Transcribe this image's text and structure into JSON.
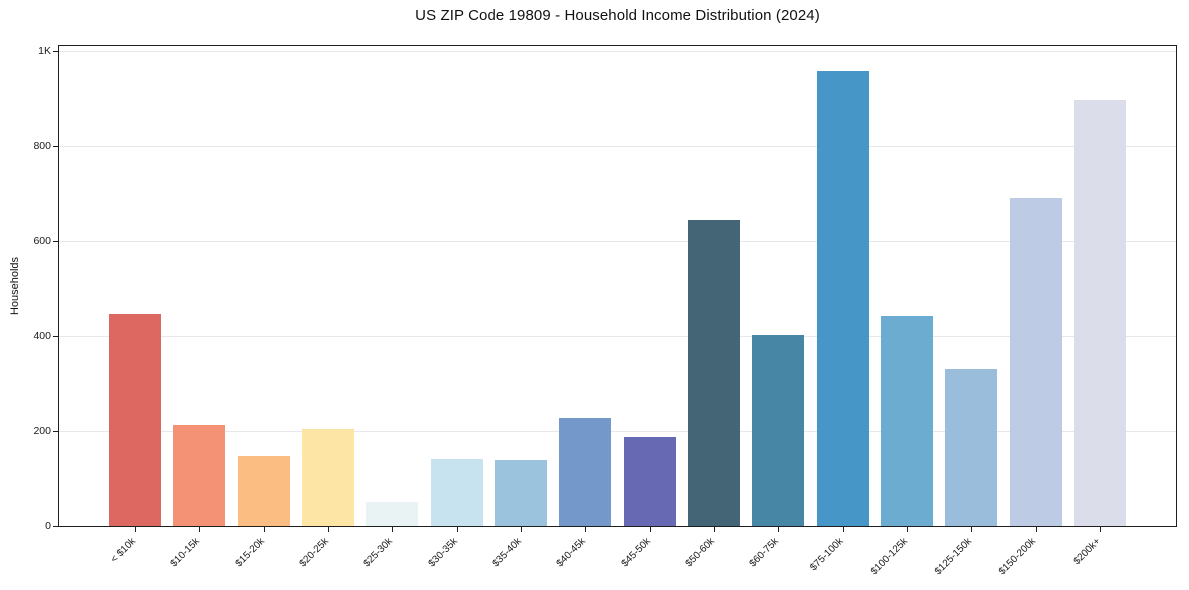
{
  "chart_data": {
    "type": "bar",
    "title": "US ZIP Code 19809 - Household Income Distribution (2024)",
    "xlabel": "",
    "ylabel": "Households",
    "categories": [
      "< $10k",
      "$10-15k",
      "$15-20k",
      "$20-25k",
      "$25-30k",
      "$30-35k",
      "$35-40k",
      "$40-45k",
      "$45-50k",
      "$50-60k",
      "$60-75k",
      "$75-100k",
      "$100-125k",
      "$125-150k",
      "$150-200k",
      "$200k+"
    ],
    "values": [
      447,
      212,
      147,
      204,
      50,
      141,
      139,
      228,
      188,
      644,
      402,
      958,
      441,
      330,
      690,
      897
    ],
    "bar_colors": [
      "#d95d55",
      "#f28a6b",
      "#fbb878",
      "#fde49e",
      "#e8f2f3",
      "#c3e1ee",
      "#94bedc",
      "#6b90c7",
      "#5b5ead",
      "#35596c",
      "#3a7d9f",
      "#388fc4",
      "#62a6ce",
      "#93b8d9",
      "#b8c8e2",
      "#d8dae8"
    ],
    "ylim": [
      0,
      1010
    ],
    "yticks": [
      {
        "value": 0,
        "label": "0"
      },
      {
        "value": 200,
        "label": "200"
      },
      {
        "value": 400,
        "label": "400"
      },
      {
        "value": 600,
        "label": "600"
      },
      {
        "value": 800,
        "label": "800"
      },
      {
        "value": 1000,
        "label": "1K"
      }
    ],
    "grid": "horizontal",
    "legend_position": "none",
    "colors": {
      "axis": "#1f1f1f",
      "gridline": "#e8e8ec",
      "text": "#1a1a1a",
      "background": "#ffffff"
    }
  }
}
